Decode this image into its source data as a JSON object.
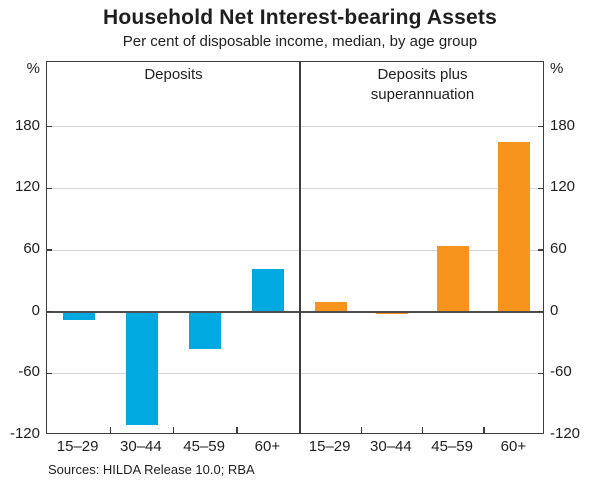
{
  "chart_data": {
    "type": "bar",
    "title": "Household Net Interest-bearing Assets",
    "subtitle": "Per cent of disposable income, median, by age group",
    "unit_label": "%",
    "categories": [
      "15–29",
      "30–44",
      "45–59",
      "60+"
    ],
    "y_ticks": [
      180,
      120,
      60,
      0,
      -60,
      -120
    ],
    "ylim": [
      -120,
      243
    ],
    "grid": true,
    "legend_position": "none",
    "panels": [
      {
        "title_lines": [
          "Deposits"
        ],
        "series_name": "Deposits",
        "color": "#00a9e0",
        "values": [
          -8,
          -110,
          -36,
          42
        ]
      },
      {
        "title_lines": [
          "Deposits plus",
          "superannuation"
        ],
        "series_name": "Deposits plus superannuation",
        "color": "#f7941e",
        "values": [
          9,
          -2,
          64,
          165
        ]
      }
    ],
    "source": "Sources: HILDA Release 10.0; RBA",
    "colors": {
      "left_bars": "#00a9e0",
      "right_bars": "#f7941e",
      "zero_line": "#4d4d4f",
      "frame": "#3d3d3d",
      "gridline": "#d7d7d7"
    }
  }
}
